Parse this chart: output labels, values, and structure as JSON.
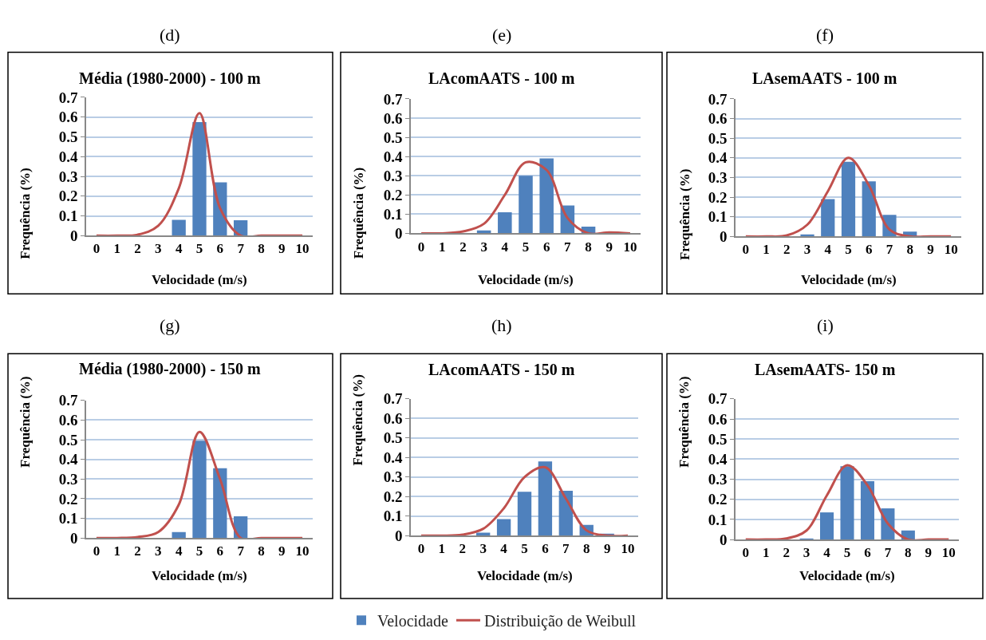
{
  "chart_data": [
    {
      "type": "bar",
      "title": "Média (1980-2000) - 100 m",
      "xlabel": "Velocidade (m/s)",
      "ylabel": "Frequência (%)",
      "annotations": [
        "(d)"
      ],
      "categories": [
        "0",
        "1",
        "2",
        "3",
        "4",
        "5",
        "6",
        "7",
        "8",
        "9",
        "10"
      ],
      "ylim": [
        0,
        0.7
      ],
      "yticks": [
        0,
        0.1,
        0.2,
        0.3,
        0.4,
        0.5,
        0.6,
        0.7
      ],
      "grid": "y",
      "legend": "bottom",
      "series": [
        {
          "name": "Velocidade",
          "color": "#4f81bd",
          "values": [
            0,
            0,
            0,
            0,
            0.08,
            0.575,
            0.27,
            0.078,
            0,
            0,
            0
          ]
        },
        {
          "name": "Distribuição de Weibull",
          "type": "line",
          "color": "#c0504d",
          "values": [
            0,
            0,
            0.005,
            0.05,
            0.24,
            0.62,
            0.14,
            0,
            0,
            0,
            0
          ]
        }
      ]
    },
    {
      "type": "bar",
      "title": "LAcomAATS - 100 m",
      "xlabel": "Velocidade (m/s)",
      "ylabel": "Frequência (%)",
      "annotations": [
        "(e)"
      ],
      "categories": [
        "0",
        "1",
        "2",
        "3",
        "4",
        "5",
        "6",
        "7",
        "8",
        "9",
        "10"
      ],
      "ylim": [
        0,
        0.7
      ],
      "yticks": [
        0,
        0.1,
        0.2,
        0.3,
        0.4,
        0.5,
        0.6,
        0.7
      ],
      "grid": "y",
      "series": [
        {
          "color": "#4f81bd",
          "values": [
            0,
            0,
            0,
            0.015,
            0.11,
            0.3,
            0.39,
            0.145,
            0.035,
            0,
            0
          ]
        },
        {
          "type": "line",
          "color": "#c0504d",
          "values": [
            0,
            0,
            0.01,
            0.05,
            0.2,
            0.37,
            0.33,
            0.08,
            0,
            0.005,
            0
          ]
        }
      ]
    },
    {
      "type": "bar",
      "title": "LAsemAATS - 100 m",
      "xlabel": "Velocidade (m/s)",
      "ylabel": "Frequência (%)",
      "annotations": [
        "(f)"
      ],
      "categories": [
        "0",
        "1",
        "2",
        "3",
        "4",
        "5",
        "6",
        "7",
        "8",
        "9",
        "10"
      ],
      "ylim": [
        0,
        0.7
      ],
      "yticks": [
        0,
        0.1,
        0.2,
        0.3,
        0.4,
        0.5,
        0.6,
        0.7
      ],
      "grid": "y",
      "series": [
        {
          "color": "#4f81bd",
          "values": [
            0,
            0,
            0,
            0.01,
            0.19,
            0.38,
            0.28,
            0.11,
            0.025,
            0,
            0
          ]
        },
        {
          "type": "line",
          "color": "#c0504d",
          "values": [
            0,
            0,
            0.005,
            0.06,
            0.23,
            0.4,
            0.26,
            0.035,
            0,
            0,
            0
          ]
        }
      ]
    },
    {
      "type": "bar",
      "title": "Média (1980-2000) - 150 m",
      "xlabel": "Velocidade (m/s)",
      "ylabel": "Frequência (%)",
      "annotations": [
        "(g)"
      ],
      "categories": [
        "0",
        "1",
        "2",
        "3",
        "4",
        "5",
        "6",
        "7",
        "8",
        "9",
        "10"
      ],
      "ylim": [
        0,
        0.7
      ],
      "yticks": [
        0,
        0.1,
        0.2,
        0.3,
        0.4,
        0.5,
        0.6,
        0.7
      ],
      "grid": "y",
      "series": [
        {
          "color": "#4f81bd",
          "values": [
            0,
            0,
            0,
            0,
            0.03,
            0.495,
            0.355,
            0.11,
            0,
            0,
            0
          ]
        },
        {
          "type": "line",
          "color": "#c0504d",
          "values": [
            0,
            0,
            0.005,
            0.03,
            0.17,
            0.54,
            0.3,
            0,
            0,
            0,
            0
          ]
        }
      ]
    },
    {
      "type": "bar",
      "title": "LAcomAATS - 150 m",
      "xlabel": "Velocidade (m/s)",
      "ylabel": "Frequência (%)",
      "annotations": [
        "(h)"
      ],
      "categories": [
        "0",
        "1",
        "2",
        "3",
        "4",
        "5",
        "6",
        "7",
        "8",
        "9",
        "10"
      ],
      "ylim": [
        0,
        0.7
      ],
      "yticks": [
        0,
        0.1,
        0.2,
        0.3,
        0.4,
        0.5,
        0.6,
        0.7
      ],
      "grid": "y",
      "series": [
        {
          "color": "#4f81bd",
          "values": [
            0,
            0,
            0,
            0.015,
            0.085,
            0.225,
            0.38,
            0.23,
            0.055,
            0.01,
            0
          ]
        },
        {
          "type": "line",
          "color": "#c0504d",
          "values": [
            0,
            0,
            0.005,
            0.035,
            0.14,
            0.3,
            0.35,
            0.19,
            0.027,
            0,
            0
          ]
        }
      ]
    },
    {
      "type": "bar",
      "title": "LAsemAATS- 150 m",
      "xlabel": "Velocidade (m/s)",
      "ylabel": "Frequência (%)",
      "annotations": [
        "(i)"
      ],
      "categories": [
        "0",
        "1",
        "2",
        "3",
        "4",
        "5",
        "6",
        "7",
        "8",
        "9",
        "10"
      ],
      "ylim": [
        0,
        0.7
      ],
      "yticks": [
        0,
        0.1,
        0.2,
        0.3,
        0.4,
        0.5,
        0.6,
        0.7
      ],
      "grid": "y",
      "series": [
        {
          "color": "#4f81bd",
          "values": [
            0,
            0,
            0,
            0.005,
            0.135,
            0.365,
            0.29,
            0.155,
            0.045,
            0,
            0
          ]
        },
        {
          "type": "line",
          "color": "#c0504d",
          "values": [
            0,
            0,
            0.005,
            0.045,
            0.22,
            0.37,
            0.27,
            0.08,
            0,
            0,
            0
          ]
        }
      ]
    }
  ]
}
